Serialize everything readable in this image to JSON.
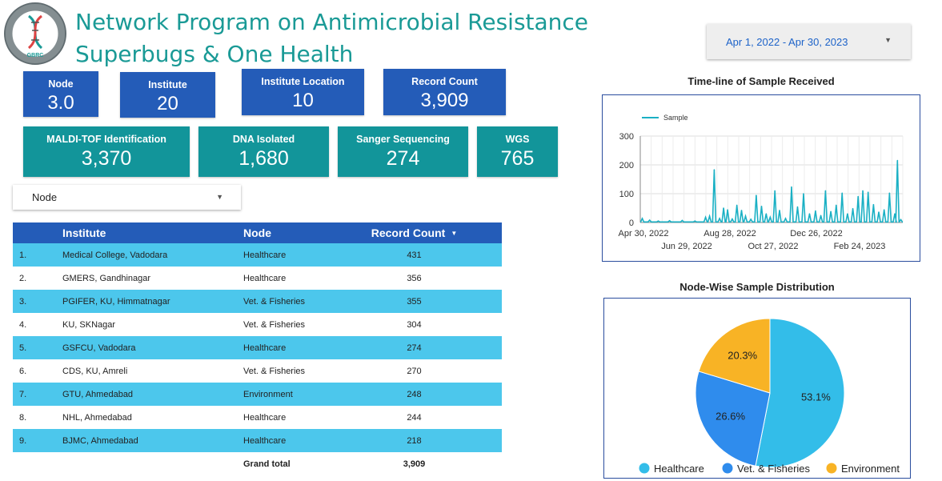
{
  "header": {
    "logo": {
      "icon": "gbrc-logo",
      "arc_top": "GUJARAT BIOTECHNOLOGY",
      "arc_bottom": "RESEARCH CENTRE",
      "abbr": "GBRC"
    },
    "title_line1": "Network Program on Antimicrobial Resistance",
    "title_line2": "Superbugs & One Health"
  },
  "date_range": {
    "value": "Apr 1, 2022 - Apr 30, 2023",
    "icon": "caret-down-icon"
  },
  "kpis_top": [
    {
      "label": "Node",
      "value": "3.0"
    },
    {
      "label": "Institute",
      "value": "20"
    },
    {
      "label": "Institute Location",
      "value": "10"
    },
    {
      "label": "Record Count",
      "value": "3,909"
    }
  ],
  "kpis_bottom": [
    {
      "label": "MALDI-TOF Identification",
      "value": "3,370"
    },
    {
      "label": "DNA Isolated",
      "value": "1,680"
    },
    {
      "label": "Sanger Sequencing",
      "value": "274"
    },
    {
      "label": "WGS",
      "value": "765"
    }
  ],
  "node_filter": {
    "value": "Node",
    "icon": "caret-down-icon"
  },
  "table": {
    "columns": [
      "Institute",
      "Node",
      "Record Count"
    ],
    "sort_icon": "sort-down-icon",
    "rows": [
      {
        "num": "1.",
        "institute": "Medical College, Vadodara",
        "node": "Healthcare",
        "count": "431"
      },
      {
        "num": "2.",
        "institute": "GMERS, Gandhinagar",
        "node": "Healthcare",
        "count": "356"
      },
      {
        "num": "3.",
        "institute": "PGIFER, KU, Himmatnagar",
        "node": "Vet. & Fisheries",
        "count": "355"
      },
      {
        "num": "4.",
        "institute": "KU, SKNagar",
        "node": "Vet. & Fisheries",
        "count": "304"
      },
      {
        "num": "5.",
        "institute": "GSFCU, Vadodara",
        "node": "Healthcare",
        "count": "274"
      },
      {
        "num": "6.",
        "institute": "CDS, KU, Amreli",
        "node": "Vet. & Fisheries",
        "count": "270"
      },
      {
        "num": "7.",
        "institute": "GTU, Ahmedabad",
        "node": "Environment",
        "count": "248"
      },
      {
        "num": "8.",
        "institute": "NHL, Ahmedabad",
        "node": "Healthcare",
        "count": "244"
      },
      {
        "num": "9.",
        "institute": "BJMC, Ahmedabad",
        "node": "Healthcare",
        "count": "218"
      }
    ],
    "total_label": "Grand total",
    "total_value": "3,909"
  },
  "colors": {
    "title": "#1a9a96",
    "kpi_blue": "#245cb8",
    "kpi_teal": "#12959a",
    "row_alt": "#4cc7ec",
    "line": "#1ab0c4",
    "healthcare": "#33bde9",
    "vet": "#2f8ced",
    "environment": "#f8b325"
  },
  "chart_data": [
    {
      "type": "line",
      "title": "Time-line of Sample Received",
      "legend": [
        "Sample"
      ],
      "legend_position": "top-left",
      "x_ticks_row1": [
        "Apr 30, 2022",
        "Aug 28, 2022",
        "Dec 26, 2022"
      ],
      "x_ticks_row2": [
        "Jun 29, 2022",
        "Oct 27, 2022",
        "Feb 24, 2023"
      ],
      "y_ticks": [
        "300",
        "200",
        "100",
        "0"
      ],
      "ylim": [
        0,
        300
      ],
      "x_range": [
        "2022-04-01",
        "2023-04-30"
      ],
      "grid": true,
      "series": [
        {
          "name": "Sample",
          "points": [
            [
              "2022-04-04",
              14
            ],
            [
              "2022-04-15",
              8
            ],
            [
              "2022-04-28",
              5
            ],
            [
              "2022-05-15",
              6
            ],
            [
              "2022-06-03",
              7
            ],
            [
              "2022-06-22",
              5
            ],
            [
              "2022-07-08",
              18
            ],
            [
              "2022-07-14",
              22
            ],
            [
              "2022-07-21",
              183
            ],
            [
              "2022-07-29",
              14
            ],
            [
              "2022-08-04",
              50
            ],
            [
              "2022-08-10",
              44
            ],
            [
              "2022-08-17",
              12
            ],
            [
              "2022-08-24",
              60
            ],
            [
              "2022-08-31",
              42
            ],
            [
              "2022-09-06",
              22
            ],
            [
              "2022-09-14",
              11
            ],
            [
              "2022-09-22",
              94
            ],
            [
              "2022-09-30",
              56
            ],
            [
              "2022-10-07",
              30
            ],
            [
              "2022-10-13",
              18
            ],
            [
              "2022-10-20",
              110
            ],
            [
              "2022-10-27",
              42
            ],
            [
              "2022-11-05",
              14
            ],
            [
              "2022-11-14",
              123
            ],
            [
              "2022-11-23",
              54
            ],
            [
              "2022-12-02",
              100
            ],
            [
              "2022-12-11",
              30
            ],
            [
              "2022-12-20",
              40
            ],
            [
              "2022-12-28",
              24
            ],
            [
              "2023-01-04",
              110
            ],
            [
              "2023-01-12",
              38
            ],
            [
              "2023-01-20",
              60
            ],
            [
              "2023-01-29",
              102
            ],
            [
              "2023-02-06",
              30
            ],
            [
              "2023-02-14",
              48
            ],
            [
              "2023-02-22",
              90
            ],
            [
              "2023-03-01",
              110
            ],
            [
              "2023-03-09",
              105
            ],
            [
              "2023-03-17",
              62
            ],
            [
              "2023-03-25",
              36
            ],
            [
              "2023-04-02",
              44
            ],
            [
              "2023-04-10",
              102
            ],
            [
              "2023-04-18",
              30
            ],
            [
              "2023-04-22",
              215
            ],
            [
              "2023-04-27",
              10
            ]
          ]
        }
      ]
    },
    {
      "type": "pie",
      "title": "Node-Wise Sample Distribution",
      "legend_position": "bottom",
      "slices": [
        {
          "label": "Healthcare",
          "value": 53.1,
          "text": "53.1%"
        },
        {
          "label": "Vet. & Fisheries",
          "value": 26.6,
          "text": "26.6%"
        },
        {
          "label": "Environment",
          "value": 20.3,
          "text": "20.3%"
        }
      ]
    }
  ]
}
